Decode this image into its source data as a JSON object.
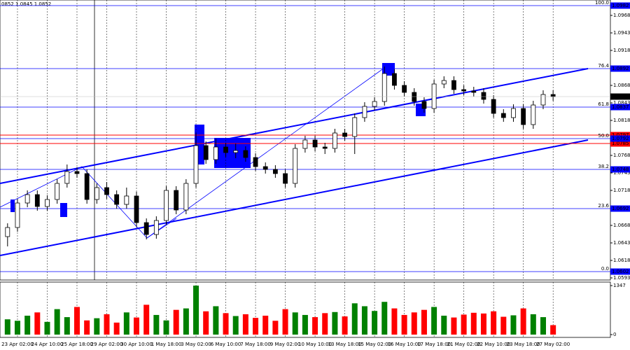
{
  "chart_data": {
    "type": "candlestick",
    "header": "0852 1.0845 1.0852",
    "categories": [
      null,
      "23 Apr 02:00",
      null,
      null,
      "24 Apr 10:00",
      null,
      null,
      "25 Apr 18:00",
      null,
      null,
      "29 Apr 02:00",
      null,
      null,
      "30 Apr 10:00",
      null,
      null,
      "1 May 18:00",
      null,
      null,
      "3 May 02:00",
      null,
      null,
      "6 May 10:00",
      null,
      null,
      "7 May 18:00",
      null,
      null,
      "9 May 02:00",
      null,
      null,
      "10 May 10:00",
      null,
      null,
      "13 May 18:00",
      null,
      null,
      "15 May 02:00",
      null,
      null,
      "16 May 10:00",
      null,
      null,
      "17 May 18:00",
      null,
      null,
      "21 May 02:00",
      null,
      null,
      "22 May 10:00",
      null,
      null,
      "23 May 18:00",
      null,
      null,
      "27 May 02:00"
    ],
    "open": [
      1.0652,
      1.0665,
      1.07,
      1.0712,
      1.0695,
      1.0705,
      1.0728,
      1.0745,
      1.0742,
      1.0705,
      1.0722,
      1.0712,
      1.0698,
      1.071,
      1.0672,
      1.0655,
      1.0675,
      1.0718,
      1.069,
      1.0728,
      1.0782,
      1.0762,
      1.078,
      1.0772,
      1.0775,
      1.0765,
      1.0752,
      1.0748,
      1.0742,
      1.0728,
      1.0778,
      1.079,
      1.078,
      1.0778,
      1.08,
      1.0795,
      1.0822,
      1.0838,
      1.0845,
      1.0885,
      1.0868,
      1.0858,
      1.0845,
      1.0835,
      1.087,
      1.0875,
      1.0862,
      1.086,
      1.0858,
      1.0848,
      1.0828,
      1.0822,
      1.0835,
      1.0812,
      1.084,
      1.0855
    ],
    "high": [
      1.0671,
      1.0706,
      1.0718,
      1.0718,
      1.0711,
      1.0734,
      1.0755,
      1.0751,
      1.0748,
      1.0728,
      1.073,
      1.0718,
      1.0722,
      1.0716,
      1.0678,
      1.0681,
      1.0724,
      1.0724,
      1.0734,
      1.08,
      1.0788,
      1.0792,
      1.0786,
      1.0785,
      1.0781,
      1.0771,
      1.0758,
      1.0754,
      1.0748,
      1.0784,
      1.0796,
      1.0796,
      1.0786,
      1.0806,
      1.0806,
      1.0828,
      1.0844,
      1.0851,
      1.0895,
      1.0891,
      1.0874,
      1.0864,
      1.0851,
      1.0876,
      1.0881,
      1.0881,
      1.0868,
      1.0866,
      1.0864,
      1.0854,
      1.0834,
      1.0841,
      1.0841,
      1.0846,
      1.0861,
      1.0861
    ],
    "low": [
      1.0638,
      1.0659,
      1.0694,
      1.0689,
      1.0689,
      1.0699,
      1.0722,
      1.0736,
      1.0699,
      1.0699,
      1.0706,
      1.0692,
      1.0692,
      1.0666,
      1.0648,
      1.0649,
      1.0669,
      1.0684,
      1.0684,
      1.0722,
      1.0756,
      1.0756,
      1.0766,
      1.0764,
      1.0759,
      1.0746,
      1.0742,
      1.0736,
      1.0722,
      1.0722,
      1.0772,
      1.0774,
      1.077,
      1.0772,
      1.0789,
      1.077,
      1.0816,
      1.0832,
      1.0839,
      1.0862,
      1.0852,
      1.0839,
      1.0829,
      1.0829,
      1.0864,
      1.0856,
      1.0854,
      1.0852,
      1.0842,
      1.0822,
      1.0816,
      1.0816,
      1.0806,
      1.0806,
      1.0834,
      1.0846
    ],
    "close": [
      1.0665,
      1.07,
      1.0712,
      1.0695,
      1.0705,
      1.0728,
      1.0745,
      1.0742,
      1.0705,
      1.0722,
      1.0712,
      1.0698,
      1.071,
      1.0672,
      1.0655,
      1.0675,
      1.0718,
      1.069,
      1.0728,
      1.0782,
      1.0762,
      1.078,
      1.0772,
      1.0775,
      1.0765,
      1.0752,
      1.0748,
      1.0742,
      1.0728,
      1.0778,
      1.079,
      1.078,
      1.0778,
      1.08,
      1.0795,
      1.0822,
      1.0838,
      1.0845,
      1.0885,
      1.0868,
      1.0858,
      1.0845,
      1.0835,
      1.087,
      1.0875,
      1.0862,
      1.086,
      1.0858,
      1.0848,
      1.0828,
      1.0822,
      1.0835,
      1.0812,
      1.084,
      1.0855,
      1.0852
    ],
    "volume": [
      420,
      380,
      520,
      610,
      350,
      700,
      480,
      760,
      390,
      450,
      560,
      330,
      610,
      470,
      820,
      540,
      390,
      680,
      720,
      1347,
      640,
      780,
      590,
      510,
      560,
      460,
      520,
      380,
      700,
      610,
      540,
      480,
      590,
      620,
      500,
      860,
      780,
      650,
      900,
      720,
      540,
      610,
      680,
      760,
      520,
      470,
      550,
      600,
      580,
      640,
      490,
      530,
      720,
      560,
      480,
      260
    ],
    "ylim": [
      1.059,
      1.099
    ],
    "yticks": [
      1.0593,
      1.0618,
      1.0643,
      1.0668,
      1.0718,
      1.0743,
      1.0768,
      1.0818,
      1.0843,
      1.0868,
      1.0918,
      1.0943,
      1.0968
    ],
    "volume_ylim": [
      0,
      1347
    ],
    "volume_ticks": [
      1347,
      0
    ],
    "fib_levels": [
      {
        "name": "100.0",
        "value": 1.0982
      },
      {
        "name": "76.4",
        "value": 1.0892
      },
      {
        "name": "61.8",
        "value": 1.0837
      },
      {
        "name": "50.0",
        "value": 1.0792
      },
      {
        "name": "38.2",
        "value": 1.0748
      },
      {
        "name": "23.6",
        "value": 1.0692
      },
      {
        "name": "0.0",
        "value": 1.0602
      }
    ],
    "fib_color": "#0000ff",
    "lines": [
      {
        "value": 1.0797,
        "color": "#ff0000"
      },
      {
        "value": 1.0785,
        "color": "#ff0000"
      }
    ],
    "last_price": 1.0852,
    "candle_color": "#000000",
    "volume_up_color": "#008000",
    "volume_down_color": "#ff0000"
  }
}
